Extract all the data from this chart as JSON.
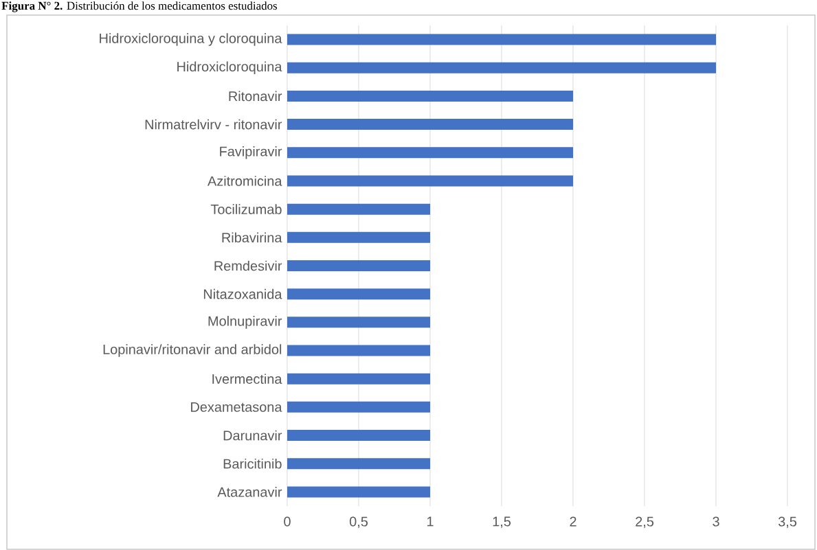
{
  "chart_data": {
    "type": "bar",
    "orientation": "horizontal",
    "title": "**Figura N° 2.** Distribución de los medicamentos estudiados",
    "categories": [
      "Hidroxicloroquina y cloroquina",
      "Hidroxicloroquina",
      "Ritonavir",
      "Nirmatrelvirv - ritonavir",
      "Favipiravir",
      "Azitromicina",
      "Tocilizumab",
      "Ribavirina",
      "Remdesivir",
      "Nitazoxanida",
      "Molnupiravir",
      "Lopinavir/ritonavir and arbidol",
      "Ivermectina",
      "Dexametasona",
      "Darunavir",
      "Baricitinib",
      "Atazanavir"
    ],
    "values": [
      3,
      3,
      2,
      2,
      2,
      2,
      1,
      1,
      1,
      1,
      1,
      1,
      1,
      1,
      1,
      1,
      1
    ],
    "color": "#4472c4",
    "xlim": [
      0,
      3.5
    ],
    "xticks": [
      0,
      {
        "value": 0.5,
        "label": "0,5"
      },
      1,
      {
        "value": 1.5,
        "label": "1,5"
      },
      2,
      {
        "value": 2.5,
        "label": "2,5"
      },
      3,
      {
        "value": 3.5,
        "label": "3,5"
      }
    ],
    "grid": "x"
  }
}
